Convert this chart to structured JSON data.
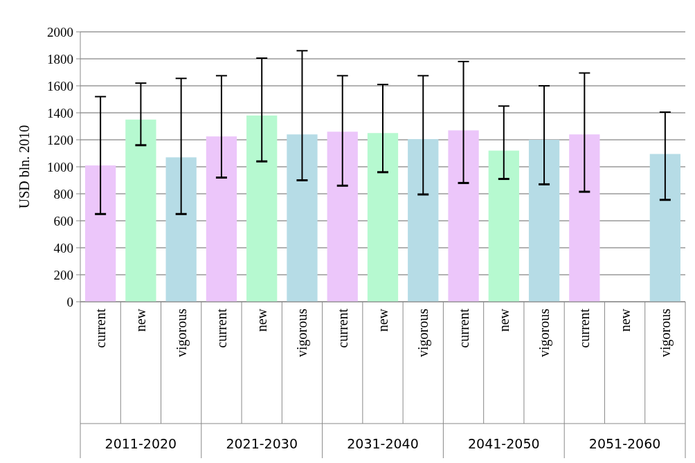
{
  "chart_data": {
    "type": "bar",
    "ylabel": "USD bln. 2010",
    "categories": [
      "current",
      "new",
      "vigorous",
      "current",
      "new",
      "vigorous",
      "current",
      "new",
      "vigorous",
      "current",
      "new",
      "vigorous",
      "current",
      "new",
      "vigorous"
    ],
    "values": [
      1010,
      1350,
      1070,
      1225,
      1380,
      1240,
      1260,
      1250,
      1205,
      1270,
      1120,
      1200,
      1240,
      null,
      1095
    ],
    "colors": [
      "#ecc6fa",
      "#b6f9d0",
      "#b6dce6",
      "#ecc6fa",
      "#b6f9d0",
      "#b6dce6",
      "#ecc6fa",
      "#b6f9d0",
      "#b6dce6",
      "#ecc6fa",
      "#b6f9d0",
      "#b6dce6",
      "#ecc6fa",
      null,
      "#b6dce6"
    ],
    "errors": [
      [
        650,
        1520
      ],
      [
        1160,
        1620
      ],
      [
        650,
        1655
      ],
      [
        920,
        1675
      ],
      [
        1040,
        1805
      ],
      [
        900,
        1860
      ],
      [
        860,
        1675
      ],
      [
        960,
        1610
      ],
      [
        795,
        1675
      ],
      [
        880,
        1780
      ],
      [
        910,
        1450
      ],
      [
        870,
        1600
      ],
      [
        815,
        1695
      ],
      null,
      [
        755,
        1405
      ]
    ],
    "annotations": [
      "2011-2020",
      "2021-2030",
      "2031-2040",
      "2041-2050",
      "2051-2060"
    ],
    "ylim": [
      0,
      2000
    ],
    "yticks": [
      0,
      200,
      400,
      600,
      800,
      1000,
      1200,
      1400,
      1600,
      1800,
      2000
    ],
    "grid": "y"
  }
}
